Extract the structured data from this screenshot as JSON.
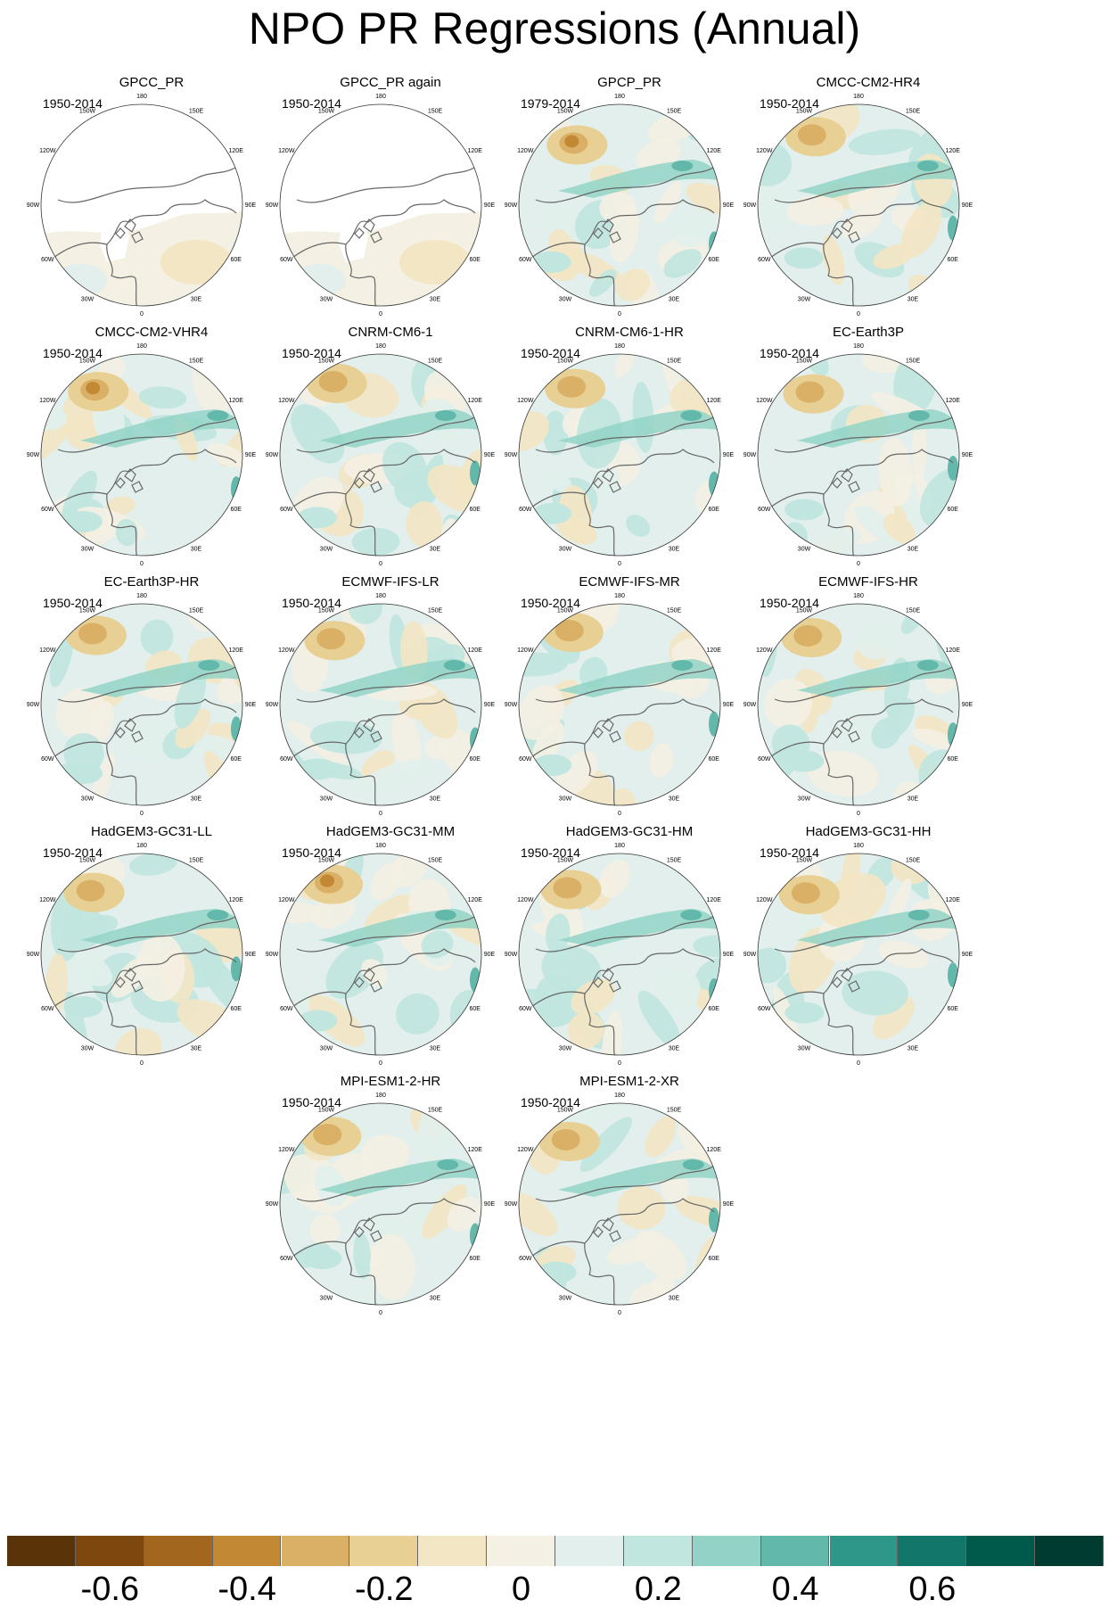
{
  "title": "NPO PR Regressions (Annual)",
  "longitude_labels": [
    "180",
    "150E",
    "120E",
    "90E",
    "60E",
    "30E",
    "0",
    "30W",
    "60W",
    "90W",
    "120W",
    "150W"
  ],
  "panels": [
    {
      "name": "GPCC_PR",
      "period": "1950-2014",
      "land_only": true,
      "pattern": 0
    },
    {
      "name": "GPCC_PR again",
      "period": "1950-2014",
      "land_only": true,
      "pattern": 0
    },
    {
      "name": "GPCP_PR",
      "period": "1979-2014",
      "land_only": false,
      "pattern": 1
    },
    {
      "name": "CMCC-CM2-HR4",
      "period": "1950-2014",
      "land_only": false,
      "pattern": 2
    },
    {
      "name": "CMCC-CM2-VHR4",
      "period": "1950-2014",
      "land_only": false,
      "pattern": 3
    },
    {
      "name": "CNRM-CM6-1",
      "period": "1950-2014",
      "land_only": false,
      "pattern": 4
    },
    {
      "name": "CNRM-CM6-1-HR",
      "period": "1950-2014",
      "land_only": false,
      "pattern": 5
    },
    {
      "name": "EC-Earth3P",
      "period": "1950-2014",
      "land_only": false,
      "pattern": 6
    },
    {
      "name": "EC-Earth3P-HR",
      "period": "1950-2014",
      "land_only": false,
      "pattern": 7
    },
    {
      "name": "ECMWF-IFS-LR",
      "period": "1950-2014",
      "land_only": false,
      "pattern": 8
    },
    {
      "name": "ECMWF-IFS-MR",
      "period": "1950-2014",
      "land_only": false,
      "pattern": 9
    },
    {
      "name": "ECMWF-IFS-HR",
      "period": "1950-2014",
      "land_only": false,
      "pattern": 10
    },
    {
      "name": "HadGEM3-GC31-LL",
      "period": "1950-2014",
      "land_only": false,
      "pattern": 11
    },
    {
      "name": "HadGEM3-GC31-MM",
      "period": "1950-2014",
      "land_only": false,
      "pattern": 12
    },
    {
      "name": "HadGEM3-GC31-HM",
      "period": "1950-2014",
      "land_only": false,
      "pattern": 13
    },
    {
      "name": "HadGEM3-GC31-HH",
      "period": "1950-2014",
      "land_only": false,
      "pattern": 14
    },
    {
      "name": "MPI-ESM1-2-HR",
      "period": "1950-2014",
      "land_only": false,
      "pattern": 15
    },
    {
      "name": "MPI-ESM1-2-XR",
      "period": "1950-2014",
      "land_only": false,
      "pattern": 16
    }
  ],
  "colorbar": {
    "colors": [
      "#5a3409",
      "#7e470e",
      "#a3661f",
      "#c38834",
      "#d9b065",
      "#e8cf94",
      "#f3e6c4",
      "#f4f0e3",
      "#e2efec",
      "#c0e6df",
      "#93d3c7",
      "#62b8aa",
      "#2f968a",
      "#12766b",
      "#005a4c",
      "#003b30"
    ],
    "labels": [
      "-0.6",
      "-0.4",
      "-0.2",
      "0",
      "0.2",
      "0.4",
      "0.6"
    ],
    "label_boundaries": [
      1,
      3,
      5,
      7,
      9,
      11,
      13
    ]
  }
}
